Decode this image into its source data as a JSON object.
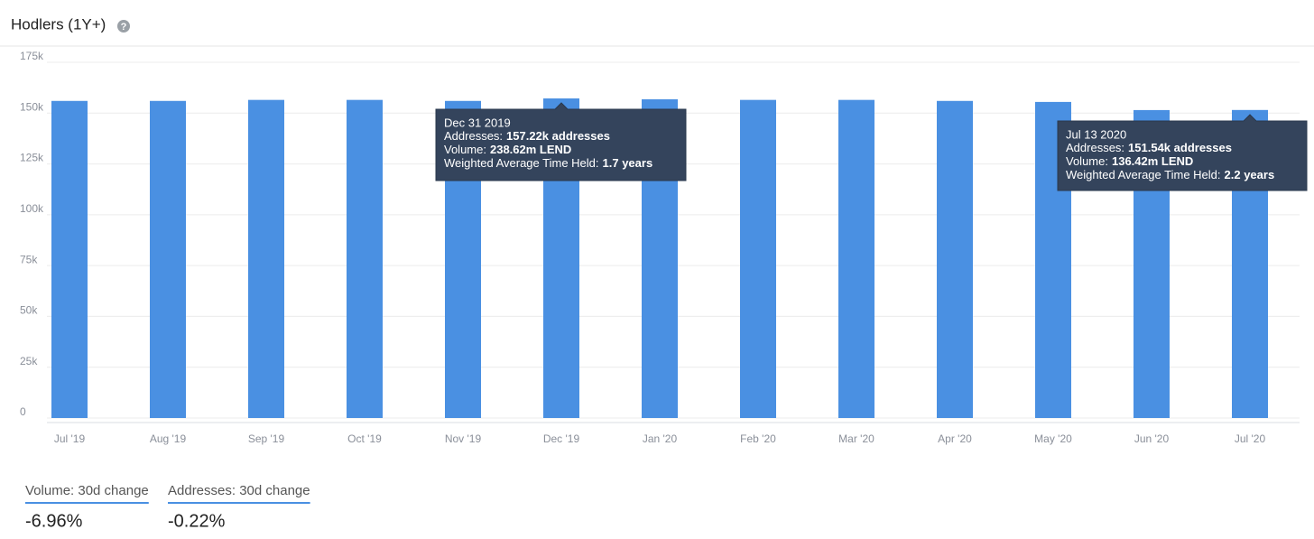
{
  "header": {
    "title": "Hodlers (1Y+)"
  },
  "chart_data": {
    "type": "bar",
    "categories": [
      "Jul '19",
      "Aug '19",
      "Sep '19",
      "Oct '19",
      "Nov '19",
      "Dec '19",
      "Jan '20",
      "Feb '20",
      "Mar '20",
      "Apr '20",
      "May '20",
      "Jun '20",
      "Jul '20"
    ],
    "values": [
      156000,
      156000,
      156500,
      156500,
      156000,
      157220,
      156800,
      156500,
      156500,
      156000,
      155500,
      151500,
      151540
    ],
    "color": "#4a90e2",
    "ylim": [
      0,
      175000
    ],
    "yticks": [
      0,
      {
        "value": 25000,
        "label": "25k"
      },
      {
        "value": 50000,
        "label": "50k"
      },
      {
        "value": 75000,
        "label": "75k"
      },
      {
        "value": 100000,
        "label": "100k"
      },
      {
        "value": 125000,
        "label": "125k"
      },
      {
        "value": 150000,
        "label": "150k"
      },
      {
        "value": 175000,
        "label": "175k"
      }
    ],
    "grid": true,
    "tooltips": [
      {
        "title": "Dec 31 2019",
        "lines": [
          {
            "label": "Addresses:",
            "value": "157.22k addresses"
          },
          {
            "label": "Volume:",
            "value": "238.62m LEND"
          },
          {
            "label": "Weighted Average Time Held:",
            "value": "1.7 years"
          }
        ]
      },
      {
        "title": "Jul 13 2020",
        "lines": [
          {
            "label": "Addresses:",
            "value": "151.54k addresses"
          },
          {
            "label": "Volume:",
            "value": "136.42m LEND"
          },
          {
            "label": "Weighted Average Time Held:",
            "value": "2.2 years"
          }
        ]
      }
    ]
  },
  "stats": [
    {
      "label": "Volume: 30d change",
      "value": "-6.96%"
    },
    {
      "label": "Addresses: 30d change",
      "value": "-0.22%"
    }
  ]
}
